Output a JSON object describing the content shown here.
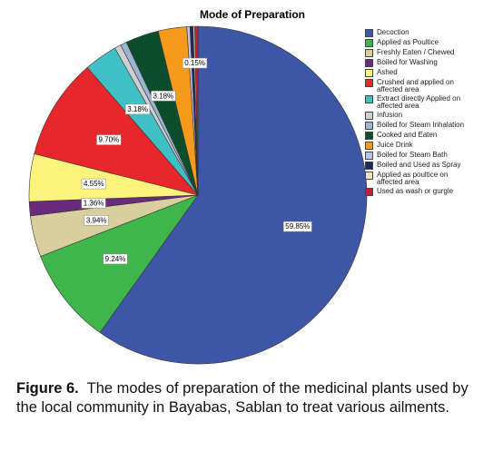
{
  "chart_data": {
    "type": "pie",
    "title": "Mode of Preparation",
    "categories": [
      "Decoction",
      "Applied as Poultice",
      "Freshly Eaten / Chewed",
      "Boiled for Washing",
      "Ashed",
      "Crushed and applied on affected area",
      "Extract directly Applied on affected area",
      "Infusion",
      "Boiled for Steam Inhalation",
      "Cooked and Eaten",
      "Juice Drink",
      "Boiled for Steam Bath",
      "Boiled and Used as Spray",
      "Applied as poultice on affected area",
      "Used as wash or gurgle"
    ],
    "values": [
      59.85,
      9.24,
      3.94,
      1.36,
      4.55,
      9.7,
      3.18,
      0.61,
      0.61,
      3.18,
      2.73,
      0.3,
      0.3,
      0.15,
      0.3
    ],
    "value_labels": [
      "59.85%",
      "9.24%",
      "3.94%",
      "1.36%",
      "4.55%",
      "9.70%",
      "3.18%",
      null,
      null,
      "3.18%",
      null,
      null,
      null,
      "0.15%",
      null
    ],
    "colors": [
      "#3d56a6",
      "#40b54b",
      "#d9cf9e",
      "#6a2b7d",
      "#fbf37b",
      "#e8272c",
      "#40c0c4",
      "#cfcfcf",
      "#9ab4d2",
      "#0c4e2c",
      "#f59a1c",
      "#b8c5e3",
      "#1d2b5b",
      "#ebe3c4",
      "#c1203b"
    ],
    "legend": "right",
    "caption_label": "Figure 6.",
    "caption": "The modes of preparation of the medicinal plants used by the local community in Bayabas, Sablan to treat  various ailments."
  }
}
